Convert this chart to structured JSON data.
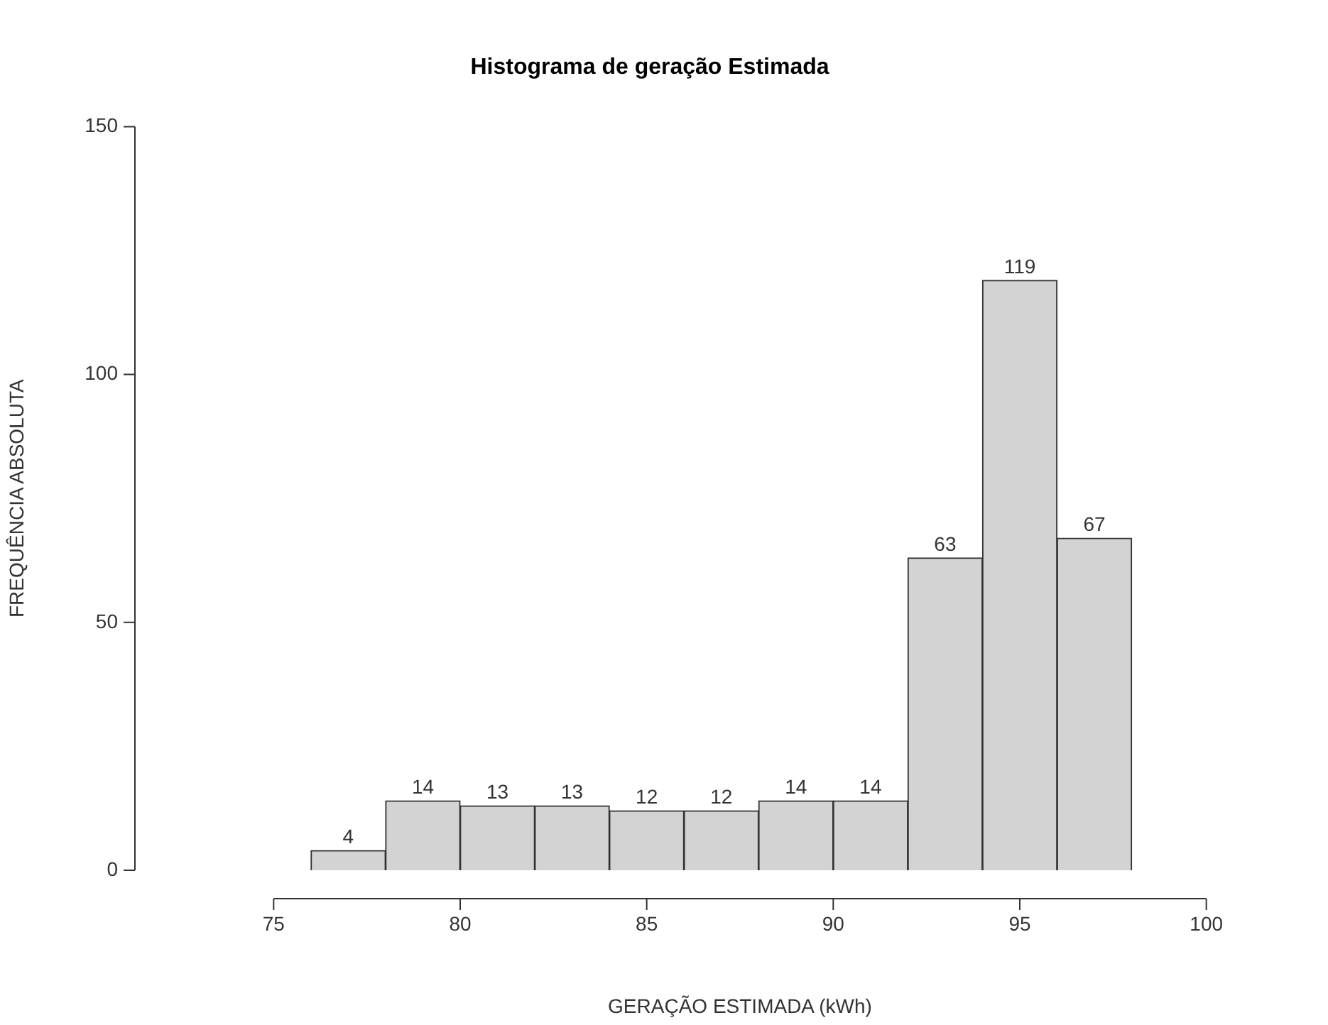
{
  "chart_data": {
    "type": "histogram",
    "title": "Histograma de geração Estimada",
    "xlabel": "GERAÇÃO ESTIMADA (kWh)",
    "ylabel": "FREQUÊNCIA ABSOLUTA",
    "bins": [
      76,
      78,
      80,
      82,
      84,
      86,
      88,
      90,
      92,
      94,
      96,
      98
    ],
    "values": [
      4,
      14,
      13,
      13,
      12,
      12,
      14,
      14,
      63,
      119,
      67
    ],
    "color": "#d3d3d3",
    "xlim": [
      75,
      100
    ],
    "xticks": [
      75,
      80,
      85,
      90,
      95,
      100
    ],
    "ylim": [
      0,
      150
    ],
    "yticks": [
      0,
      50,
      100,
      150
    ],
    "grid": false,
    "legend": false,
    "data_labels": true
  }
}
